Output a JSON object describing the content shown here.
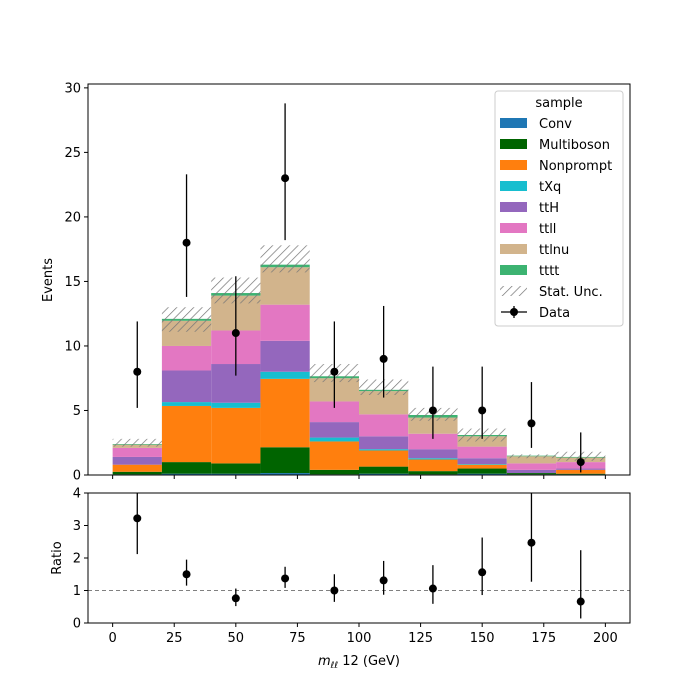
{
  "chart_data": [
    {
      "type": "bar",
      "stacked": true,
      "panel": "main",
      "ylabel": "Events",
      "ylim": [
        0,
        30.3
      ],
      "xlim": [
        -10,
        210
      ],
      "bin_edges": [
        0,
        20,
        40,
        60,
        80,
        100,
        120,
        140,
        160,
        180,
        200
      ],
      "yticks": [
        0,
        5,
        10,
        15,
        20,
        25,
        30
      ],
      "series": [
        {
          "name": "Conv",
          "color": "#1f77b4",
          "values": [
            0.05,
            0.1,
            0.1,
            0.15,
            0.05,
            0.1,
            0.05,
            0.1,
            0.05,
            0.05
          ]
        },
        {
          "name": "Multiboson",
          "color": "#006400",
          "values": [
            0.2,
            0.9,
            0.8,
            2.0,
            0.35,
            0.55,
            0.25,
            0.4,
            0.1,
            0.05
          ]
        },
        {
          "name": "Nonprompt",
          "color": "#ff7f0e",
          "values": [
            0.55,
            4.35,
            4.3,
            5.3,
            2.2,
            1.25,
            0.9,
            0.3,
            0.0,
            0.3
          ]
        },
        {
          "name": "tXq",
          "color": "#17becf",
          "values": [
            0.0,
            0.3,
            0.4,
            0.55,
            0.3,
            0.1,
            0.1,
            0.05,
            0.0,
            0.0
          ]
        },
        {
          "name": "ttH",
          "color": "#9467bd",
          "values": [
            0.6,
            2.45,
            3.0,
            2.4,
            1.2,
            1.0,
            0.7,
            0.45,
            0.25,
            0.1
          ]
        },
        {
          "name": "ttll",
          "color": "#e377c2",
          "values": [
            0.7,
            1.9,
            2.6,
            2.8,
            1.6,
            1.7,
            1.2,
            0.9,
            0.5,
            0.5
          ]
        },
        {
          "name": "ttlnu",
          "color": "#d2b48c",
          "values": [
            0.25,
            1.95,
            2.7,
            2.9,
            1.8,
            1.8,
            1.25,
            0.8,
            0.55,
            0.35
          ]
        },
        {
          "name": "tttt",
          "color": "#3cb371",
          "values": [
            0.05,
            0.15,
            0.2,
            0.2,
            0.15,
            0.1,
            0.2,
            0.1,
            0.05,
            0.05
          ]
        }
      ],
      "stat_unc": {
        "name": "Stat. Unc.",
        "lo": [
          2.2,
          11.1,
          13.3,
          15.7,
          7.2,
          6.2,
          4.2,
          2.6,
          1.3,
          1.1
        ],
        "hi": [
          2.8,
          13.0,
          15.3,
          17.8,
          8.6,
          7.4,
          5.2,
          3.6,
          1.6,
          1.8
        ]
      },
      "data_points": {
        "name": "Data",
        "x": [
          10,
          30,
          50,
          70,
          90,
          110,
          130,
          150,
          170,
          190
        ],
        "y": [
          8,
          18,
          11,
          23,
          8,
          9,
          5,
          5,
          4,
          1
        ],
        "err_lo": [
          2.8,
          4.2,
          3.3,
          4.8,
          2.8,
          3.0,
          2.2,
          2.2,
          1.9,
          0.8
        ],
        "err_hi": [
          3.9,
          5.3,
          4.4,
          5.8,
          3.9,
          4.1,
          3.4,
          3.4,
          3.2,
          2.3
        ]
      },
      "legend": {
        "title": "sample",
        "placement": "top-right"
      }
    },
    {
      "type": "scatter",
      "panel": "ratio",
      "ylabel": "Ratio",
      "ylim": [
        0,
        4
      ],
      "xlim": [
        -10,
        210
      ],
      "yticks": [
        0,
        1,
        2,
        3,
        4
      ],
      "xticks": [
        0,
        25,
        50,
        75,
        100,
        125,
        150,
        175,
        200
      ],
      "xlabel_main": "m",
      "xlabel_sub": "ℓℓ",
      "xlabel_rest": " 12 (GeV)",
      "reference_line": 1,
      "x": [
        10,
        30,
        50,
        70,
        90,
        110,
        130,
        150,
        170,
        190
      ],
      "y": [
        3.22,
        1.5,
        0.76,
        1.37,
        1.0,
        1.31,
        1.06,
        1.56,
        2.47,
        0.66
      ],
      "err_lo": [
        1.1,
        0.35,
        0.24,
        0.29,
        0.35,
        0.44,
        0.47,
        0.7,
        1.2,
        0.52
      ],
      "err_hi": [
        1.4,
        0.45,
        0.3,
        0.36,
        0.5,
        0.6,
        0.72,
        1.07,
        1.6,
        1.58
      ]
    }
  ]
}
